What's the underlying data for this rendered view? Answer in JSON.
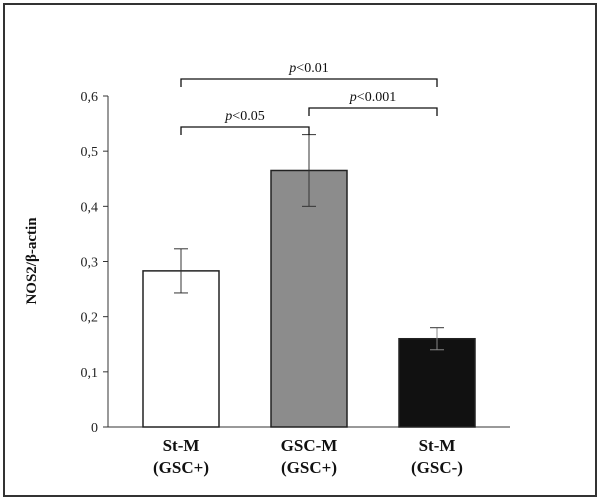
{
  "chart_data": {
    "type": "bar",
    "title": "",
    "xlabel": "",
    "ylabel": "NOS2/β-actin",
    "ylim": [
      0,
      0.6
    ],
    "yticks": [
      "0",
      "0,1",
      "0,2",
      "0,3",
      "0,4",
      "0,5",
      "0,6"
    ],
    "tick_values": [
      0,
      0.1,
      0.2,
      0.3,
      0.4,
      0.5,
      0.6
    ],
    "categories": [
      {
        "line1": "St-M",
        "line2": "(GSC+)"
      },
      {
        "line1": "GSC-M",
        "line2": "(GSC+)"
      },
      {
        "line1": "St-M",
        "line2": "(GSC-)"
      }
    ],
    "values": [
      0.283,
      0.465,
      0.16
    ],
    "errors": [
      0.04,
      0.065,
      0.02
    ],
    "bar_colors": [
      "#ffffff",
      "#8c8c8c",
      "#111111"
    ],
    "significance": [
      {
        "from": 0,
        "to": 1,
        "label": "<0.05",
        "prefix": "p"
      },
      {
        "from": 1,
        "to": 2,
        "label": "<0.001",
        "prefix": "p"
      },
      {
        "from": 0,
        "to": 2,
        "label": "<0.01",
        "prefix": "p"
      }
    ]
  }
}
